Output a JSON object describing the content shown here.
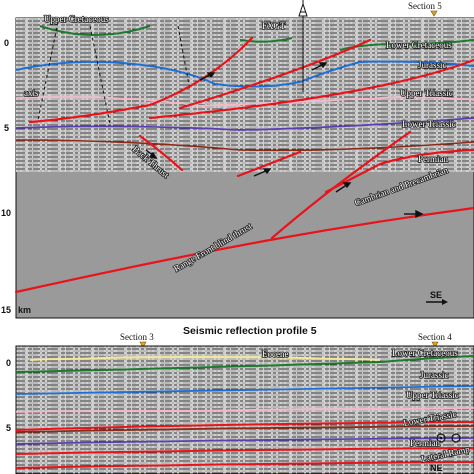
{
  "upper_panel": {
    "section_marker": "Section 5",
    "well_label": "FXGT",
    "y_ticks": [
      "0",
      "5",
      "10",
      "15"
    ],
    "y_unit": "km",
    "direction_label": "SE",
    "labels": {
      "upper_cretaceous": "Upper Cretaceous",
      "lower_cretaceous": "Lower Cretaceous",
      "jurassic": "Jurassic",
      "upper_triassic": "Upper Triassic",
      "lower_triassic": "Lower Triassic",
      "permian": "Permian",
      "cambrian_precambrian": "Cambrian and Precambrian",
      "axis": "axis",
      "back_thrust": "Back Thrust",
      "range_front": "Range Front blind thrust"
    }
  },
  "lower_panel": {
    "title": "Seismic reflection profile  5",
    "section_left": "Section 3",
    "section_right": "Section 4",
    "y_ticks": [
      "0",
      "5"
    ],
    "direction_label": "NE",
    "labels": {
      "eocene": "Eocene",
      "lower_cretaceous": "Lower Cretaceous",
      "jurassic": "Jurassic",
      "upper_triassic": "Upper Triassic",
      "lower_triassic": "Lower Triassic",
      "permian": "Permian",
      "lateral_ramp": "Lateral Ramp"
    }
  },
  "colors": {
    "fault": "#e8141c",
    "upper_cretaceous": "#1e7a2e",
    "lower_cretaceous": "#1e7a2e",
    "jurassic": "#1f6fd6",
    "upper_triassic": "#f4b6c8",
    "lower_triassic": "#5a3fb0",
    "permian": "#8a2a1a",
    "eocene": "#f2e79a",
    "seismic_bg": "#9a9a9a"
  }
}
